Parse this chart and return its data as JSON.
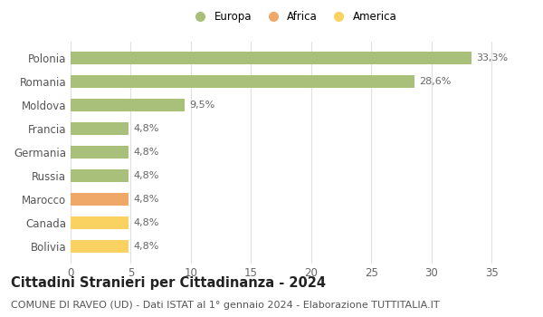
{
  "categories": [
    "Bolivia",
    "Canada",
    "Marocco",
    "Russia",
    "Germania",
    "Francia",
    "Moldova",
    "Romania",
    "Polonia"
  ],
  "values": [
    4.8,
    4.8,
    4.8,
    4.8,
    4.8,
    4.8,
    9.5,
    28.6,
    33.3
  ],
  "labels": [
    "4,8%",
    "4,8%",
    "4,8%",
    "4,8%",
    "4,8%",
    "4,8%",
    "9,5%",
    "28,6%",
    "33,3%"
  ],
  "colors": [
    "#f9d262",
    "#f9d262",
    "#f0a868",
    "#a8c07a",
    "#a8c07a",
    "#a8c07a",
    "#a8c07a",
    "#a8c07a",
    "#a8c07a"
  ],
  "legend": [
    {
      "label": "Europa",
      "color": "#a8c07a"
    },
    {
      "label": "Africa",
      "color": "#f0a868"
    },
    {
      "label": "America",
      "color": "#f9d262"
    }
  ],
  "title": "Cittadini Stranieri per Cittadinanza - 2024",
  "subtitle": "COMUNE DI RAVEO (UD) - Dati ISTAT al 1° gennaio 2024 - Elaborazione TUTTITALIA.IT",
  "xlim": [
    0,
    37
  ],
  "xticks": [
    0,
    5,
    10,
    15,
    20,
    25,
    30,
    35
  ],
  "background_color": "#ffffff",
  "grid_color": "#e0e0e0",
  "bar_height": 0.55,
  "label_fontsize": 8,
  "title_fontsize": 10.5,
  "subtitle_fontsize": 8,
  "tick_fontsize": 8.5,
  "ytick_fontsize": 8.5,
  "legend_fontsize": 8.5,
  "legend_marker_size": 9
}
